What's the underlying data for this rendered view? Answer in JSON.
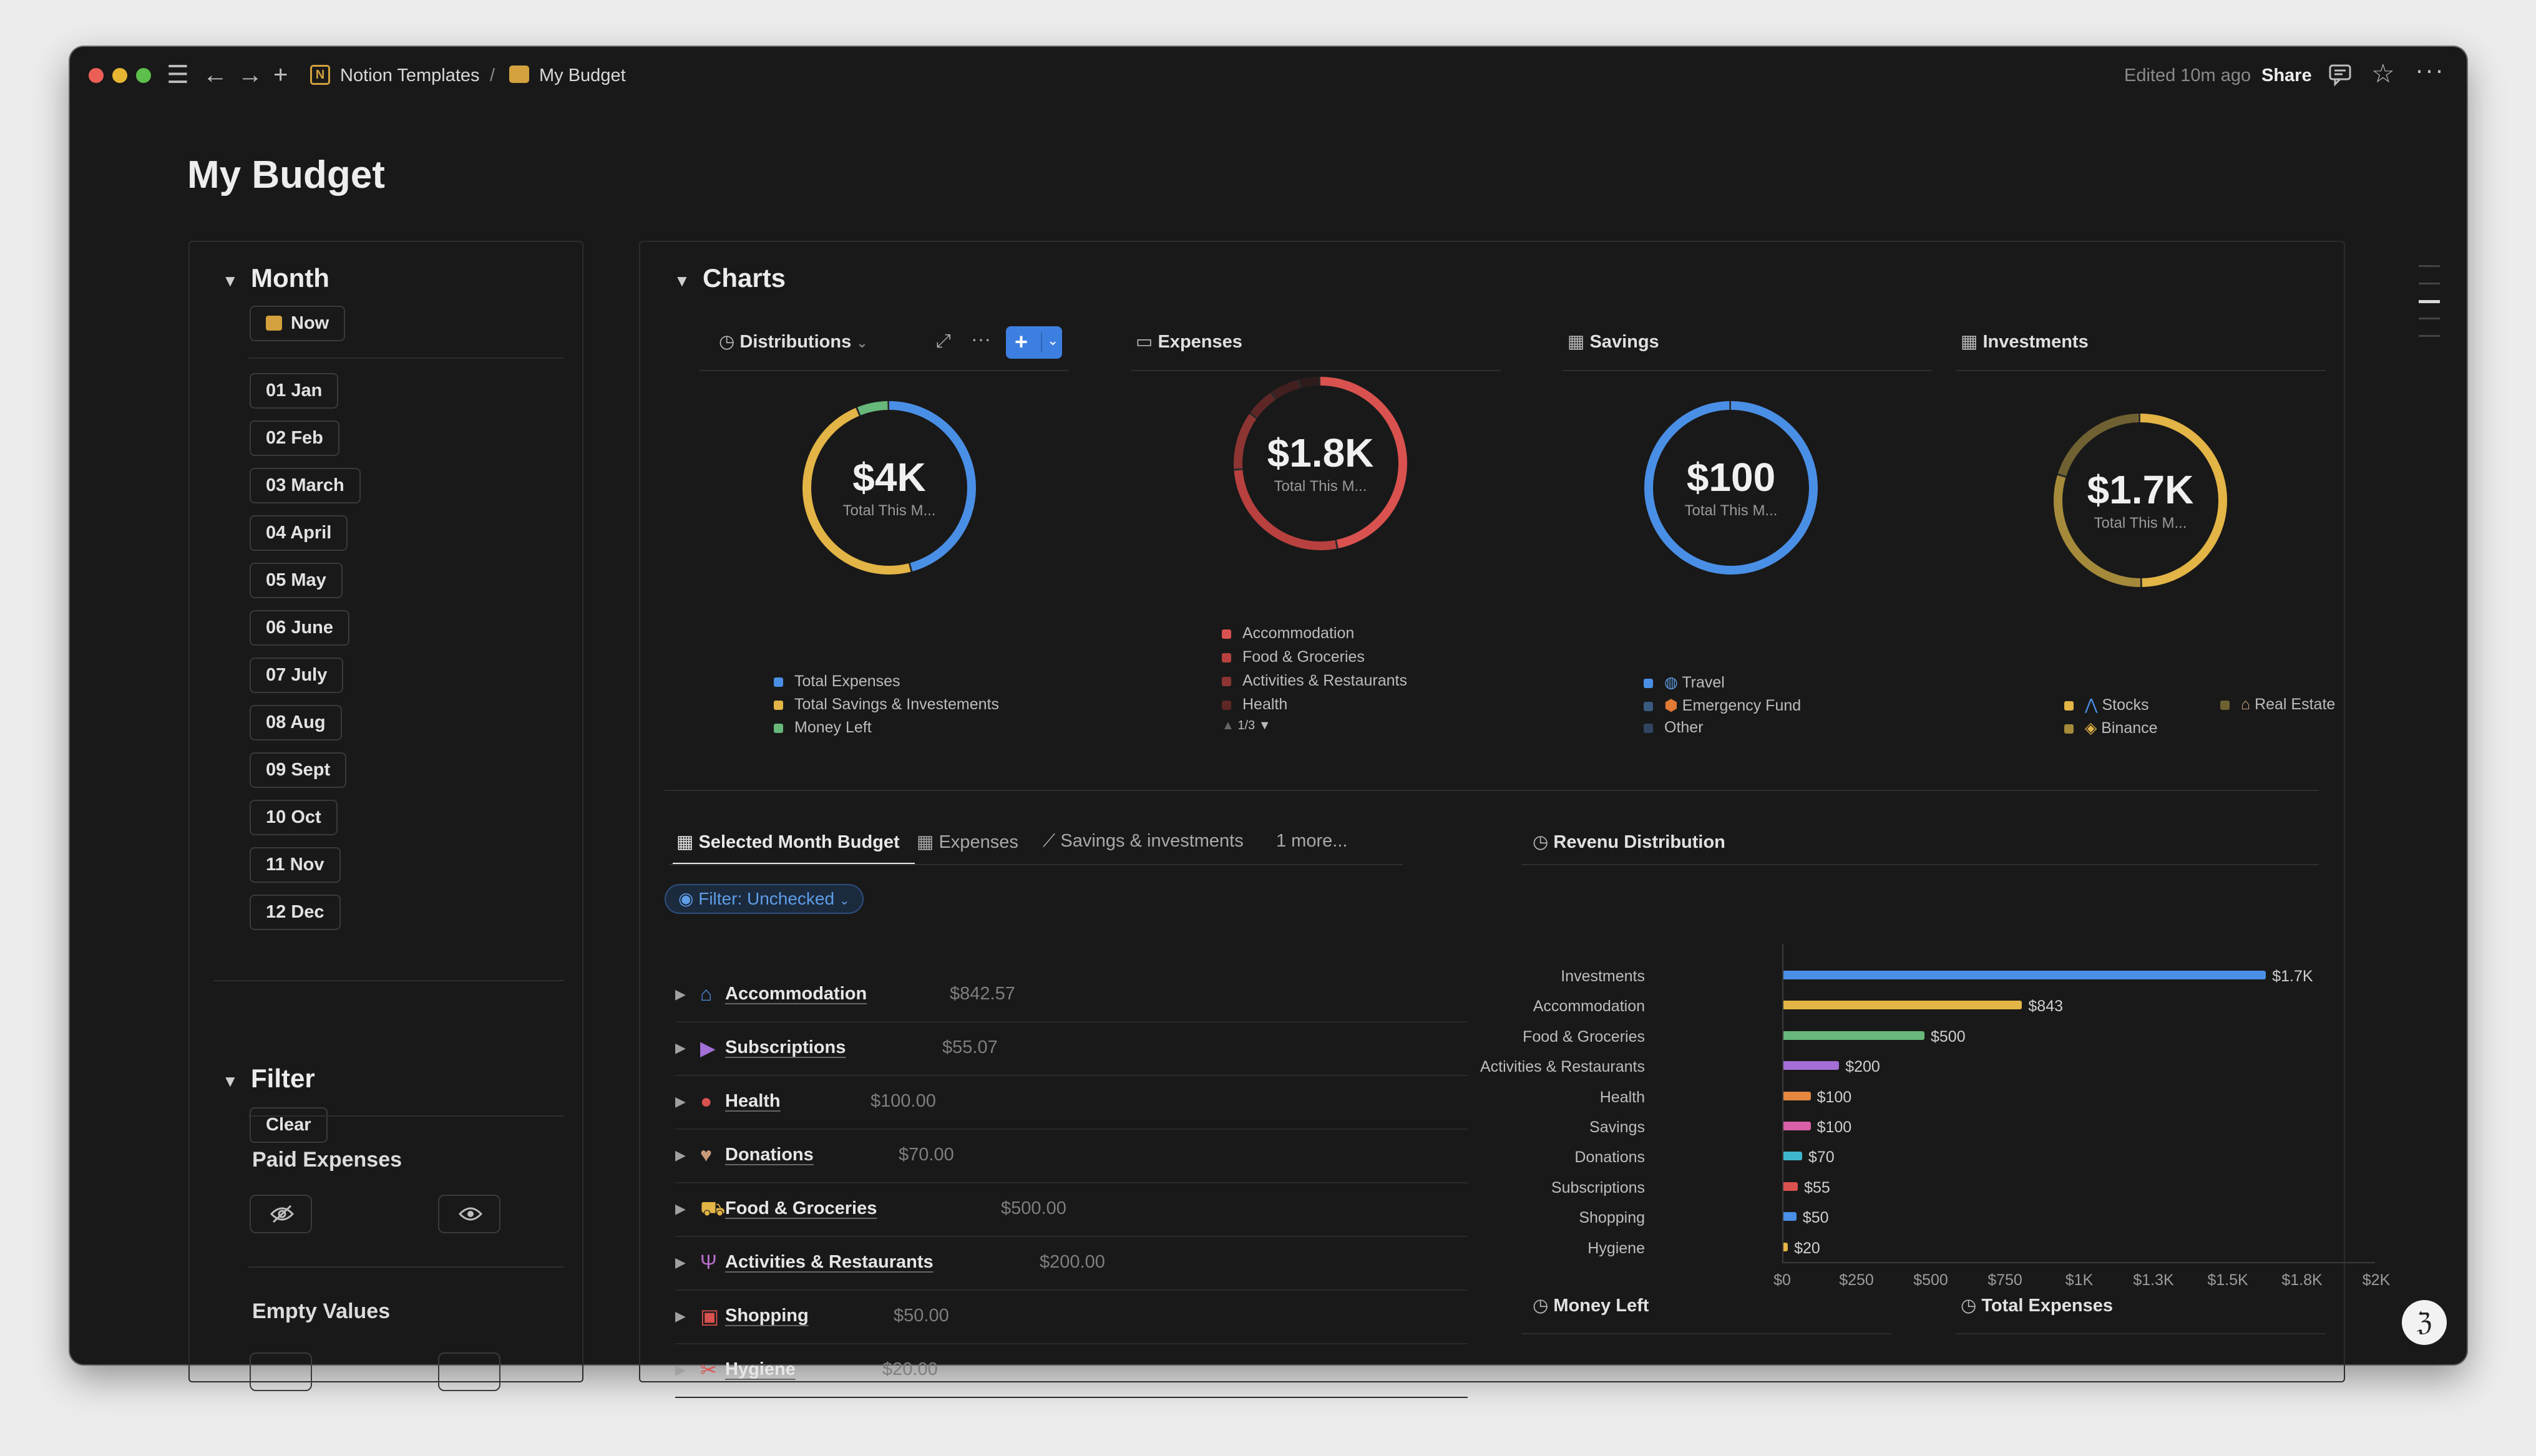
{
  "topbar": {
    "breadcrumb_parent": "Notion Templates",
    "breadcrumb_sep": "/",
    "breadcrumb_current": "My Budget",
    "edited": "Edited 10m ago",
    "share": "Share"
  },
  "page_title": "My Budget",
  "month_section": {
    "heading": "Month",
    "now_label": "Now",
    "months": [
      "01 Jan",
      "02 Feb",
      "03 March",
      "04 April",
      "05 May",
      "06 June",
      "07 July",
      "08 Aug",
      "09 Sept",
      "10 Oct",
      "11 Nov",
      "12 Dec"
    ]
  },
  "filter_section": {
    "heading": "Filter",
    "clear_label": "Clear",
    "paid_expenses": "Paid Expenses",
    "empty_values": "Empty Values"
  },
  "charts": {
    "heading": "Charts",
    "tabs": {
      "distributions": "Distributions",
      "expenses": "Expenses",
      "savings": "Savings",
      "investments": "Investments"
    },
    "distributions": {
      "value": "$4K",
      "sub": "Total This M...",
      "legend": [
        "Total Expenses",
        "Total Savings & Investements",
        "Money Left"
      ],
      "colors": [
        "#4a8fe6",
        "#e3b446",
        "#67b87a"
      ],
      "slices": [
        0.46,
        0.48,
        0.06
      ]
    },
    "expenses": {
      "value": "$1.8K",
      "sub": "Total This M...",
      "legend": [
        "Accommodation",
        "Food & Groceries",
        "Activities & Restaurants",
        "Health"
      ],
      "pager": "1/3",
      "colors": [
        "#d9524f",
        "#b8413f",
        "#8d3533",
        "#5e2726",
        "#42201f",
        "#2e1b1b"
      ],
      "slices": [
        0.47,
        0.27,
        0.11,
        0.055,
        0.055,
        0.04
      ]
    },
    "savings": {
      "value": "$100",
      "sub": "Total This M...",
      "legend": [
        "Travel",
        "Emergency Fund",
        "Other"
      ],
      "colors": [
        "#4a8fe6"
      ],
      "slices": [
        1.0
      ]
    },
    "investments": {
      "value": "$1.7K",
      "sub": "Total This M...",
      "legend": [
        "Stocks",
        "Binance",
        "Real Estate"
      ],
      "colors": [
        "#e3b446",
        "#a48a3a",
        "#6f6132"
      ],
      "slices": [
        0.5,
        0.3,
        0.2
      ]
    }
  },
  "budget_tabs": {
    "selected": "Selected Month Budget",
    "expenses": "Expenses",
    "savings": "Savings & investments",
    "more": "1 more..."
  },
  "filter_chip": "Filter: Unchecked",
  "rows": [
    {
      "name": "Accommodation",
      "amount": "$842.57"
    },
    {
      "name": "Subscriptions",
      "amount": "$55.07"
    },
    {
      "name": "Health",
      "amount": "$100.00"
    },
    {
      "name": "Donations",
      "amount": "$70.00"
    },
    {
      "name": "Food & Groceries",
      "amount": "$500.00"
    },
    {
      "name": "Activities & Restaurants",
      "amount": "$200.00"
    },
    {
      "name": "Shopping",
      "amount": "$50.00"
    },
    {
      "name": "Hygiene",
      "amount": "$20.00"
    }
  ],
  "revenue_title": "Revenu Distribution",
  "chart_data": {
    "type": "bar",
    "orientation": "horizontal",
    "title": "Revenu Distribution",
    "categories": [
      "Investments",
      "Accommodation",
      "Food & Groceries",
      "Activities & Restaurants",
      "Health",
      "Savings",
      "Donations",
      "Subscriptions",
      "Shopping",
      "Hygiene"
    ],
    "values": [
      1700,
      843,
      500,
      200,
      100,
      100,
      70,
      55,
      50,
      20
    ],
    "value_labels": [
      "$1.7K",
      "$843",
      "$500",
      "$200",
      "$100",
      "$100",
      "$70",
      "$55",
      "$50",
      "$20"
    ],
    "colors": [
      "#4a8fe6",
      "#e3b446",
      "#67b87a",
      "#a46fd6",
      "#e5873f",
      "#d85fa8",
      "#3fb6cf",
      "#d9524f",
      "#4a8fe6",
      "#e3b446"
    ],
    "x_ticks": [
      "$0",
      "$250",
      "$500",
      "$750",
      "$1K",
      "$1.3K",
      "$1.5K",
      "$1.8K",
      "$2K"
    ],
    "xlim": [
      0,
      2000
    ]
  },
  "bottom_cards": {
    "money_left": "Money Left",
    "total_expenses": "Total Expenses"
  }
}
